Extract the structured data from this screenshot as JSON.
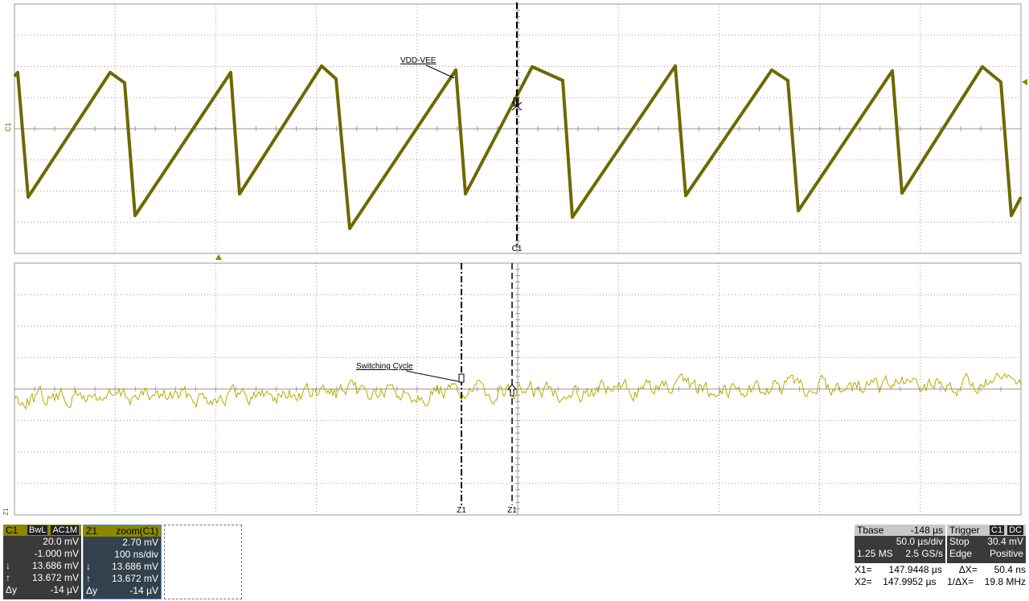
{
  "upper": {
    "trace_label": "VDD-VEE",
    "cursor_label": "C1",
    "channel_marker": "C1"
  },
  "lower": {
    "trace_label": "Switching Cycle",
    "cursor_labels": [
      "Z1",
      "Z1"
    ],
    "channel_marker": "Z1"
  },
  "c1_panel": {
    "title": "C1",
    "badges": [
      "BwL",
      "AC1M"
    ],
    "rows": [
      [
        "",
        "20.0 mV"
      ],
      [
        "",
        "-1.000 mV"
      ],
      [
        "↓",
        "13.686 mV"
      ],
      [
        "↑",
        "13.672 mV"
      ],
      [
        "Δy",
        "-14 µV"
      ]
    ]
  },
  "z1_panel": {
    "title": "Z1",
    "source": "zoom(C1)",
    "rows": [
      [
        "",
        "2.70 mV"
      ],
      [
        "",
        "100 ns/div"
      ],
      [
        "↓",
        "13.686 mV"
      ],
      [
        "↑",
        "13.672 mV"
      ],
      [
        "Δy",
        "-14 µV"
      ]
    ]
  },
  "tbase_panel": {
    "title": "Tbase",
    "offset": "-148 µs",
    "rows": [
      [
        "",
        "50.0 µs/div"
      ],
      [
        "1.25 MS",
        "2.5 GS/s"
      ]
    ]
  },
  "trigger_panel": {
    "title": "Trigger",
    "badges": [
      "C1",
      "DC"
    ],
    "rows": [
      [
        "Stop",
        "30.4 mV"
      ],
      [
        "Edge",
        "Positive"
      ]
    ]
  },
  "cursor_readout": {
    "rows": [
      [
        "X1=",
        "147.9448 µs",
        "ΔX=",
        "50.4 ns"
      ],
      [
        "X2=",
        "147.9952 µs",
        "1/ΔX=",
        "19.8 MHz"
      ]
    ]
  }
}
